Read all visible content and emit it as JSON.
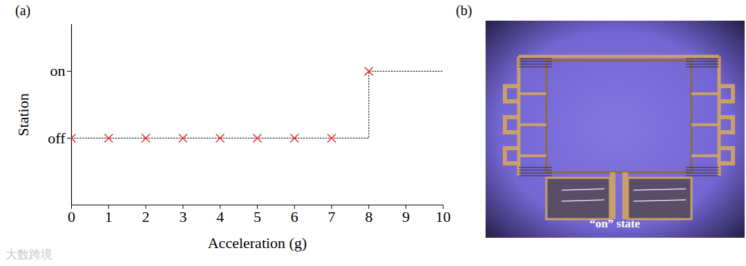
{
  "chart_data": {
    "type": "scatter",
    "title": "(a)",
    "x_label": "Acceleration (g)",
    "y_label": "Station",
    "xlim": [
      0,
      10
    ],
    "xticks": [
      0,
      1,
      2,
      3,
      4,
      5,
      6,
      7,
      8,
      9,
      10
    ],
    "ylim": [
      -1,
      1.7
    ],
    "yticks": [
      {
        "value": 0,
        "label": "off"
      },
      {
        "value": 1,
        "label": "on"
      }
    ],
    "series": [
      {
        "type": "line",
        "line_style": "dotted",
        "color": "#333333",
        "x": [
          0,
          8,
          8,
          10
        ],
        "values": [
          0,
          0,
          1,
          1
        ]
      },
      {
        "type": "scatter",
        "marker": "x",
        "color": "#e8312f",
        "x": [
          0,
          1,
          2,
          3,
          4,
          5,
          6,
          7,
          8
        ],
        "values": [
          0,
          0,
          0,
          0,
          0,
          0,
          0,
          0,
          1
        ]
      }
    ]
  },
  "photo": {
    "label": "(b)",
    "text": "“on” state"
  },
  "watermark": "大数跨境"
}
